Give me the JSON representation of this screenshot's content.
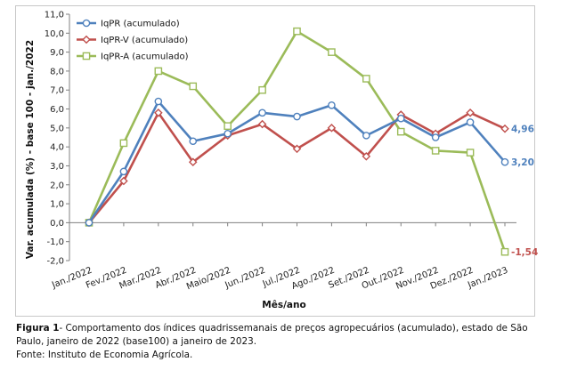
{
  "colors": {
    "iqpr": "#4f81bd",
    "iqprv": "#c0504d",
    "iqpra": "#9bbb59"
  },
  "caption": {
    "label": "Figura 1",
    "text": "- Comportamento dos índices quadrissemanais de preços agropecuários (acumulado), estado de São Paulo, janeiro de 2022 (base100) a janeiro de 2023.",
    "source": "Fonte: Instituto de Economia Agrícola."
  },
  "chart_data": {
    "type": "line",
    "xlabel": "Mês/ano",
    "ylabel": "Var. acumulada (%) - base 100 - jan./2022",
    "ylim": [
      -2.0,
      11.0
    ],
    "yticks": [
      "-2,0",
      "-1,0",
      "0,0",
      "1,0",
      "2,0",
      "3,0",
      "4,0",
      "5,0",
      "6,0",
      "7,0",
      "8,0",
      "9,0",
      "10,0",
      "11,0"
    ],
    "grid": false,
    "legend_position": "top-left",
    "categories": [
      "Jan./2022",
      "Fev./2022",
      "Mar./2022",
      "Abr./2022",
      "Maio/2022",
      "Jun./2022",
      "Jul./2022",
      "Ago./2022",
      "Set./2022",
      "Out./2022",
      "Nov./2022",
      "Dez./2022",
      "Jan./2023"
    ],
    "series": [
      {
        "name": "IqPR (acumulado)",
        "marker": "circle",
        "color_key": "iqpr",
        "values": [
          0.0,
          2.7,
          6.4,
          4.3,
          4.7,
          5.8,
          5.6,
          6.2,
          4.6,
          5.5,
          4.5,
          5.3,
          3.2
        ]
      },
      {
        "name": "IqPR-V (acumulado)",
        "marker": "diamond",
        "color_key": "iqprv",
        "values": [
          0.0,
          2.2,
          5.8,
          3.2,
          4.6,
          5.2,
          3.9,
          5.0,
          3.5,
          5.7,
          4.7,
          5.8,
          4.96
        ]
      },
      {
        "name": "IqPR-A (acumulado)",
        "marker": "square",
        "color_key": "iqpra",
        "values": [
          0.0,
          4.2,
          8.0,
          7.2,
          5.1,
          7.0,
          10.1,
          9.0,
          7.6,
          4.8,
          3.8,
          3.7,
          -1.54
        ]
      }
    ],
    "end_labels": [
      {
        "text": "4,96",
        "color_key": "iqpr",
        "series": 1
      },
      {
        "text": "3,20",
        "color_key": "iqpr",
        "series": 0
      },
      {
        "text": "-1,54",
        "color_key": "iqprv",
        "series": 2
      }
    ]
  }
}
